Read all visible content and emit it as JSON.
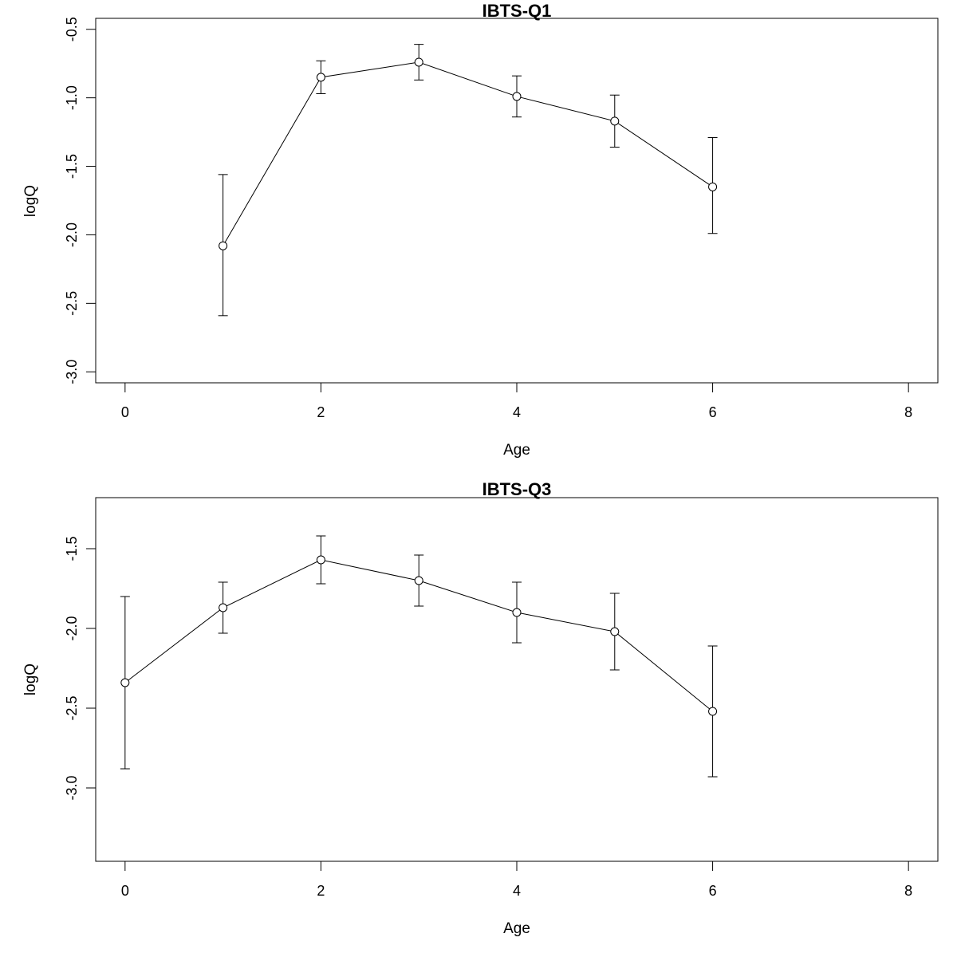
{
  "chart_data": [
    {
      "type": "line",
      "title": "IBTS-Q1",
      "xlabel": "Age",
      "ylabel": "logQ",
      "xlim": [
        -0.3,
        8.3
      ],
      "ylim": [
        -3.08,
        -0.42
      ],
      "xticks": [
        0,
        2,
        4,
        6,
        8
      ],
      "xtick_labels": [
        "0",
        "2",
        "4",
        "6",
        "8"
      ],
      "yticks": [
        -3.0,
        -2.5,
        -2.0,
        -1.5,
        -1.0,
        -0.5
      ],
      "ytick_labels": [
        "-3.0",
        "-2.5",
        "-2.0",
        "-1.5",
        "-1.0",
        "-0.5"
      ],
      "grid": false,
      "series": [
        {
          "x": [
            1,
            2,
            3,
            4,
            5,
            6
          ],
          "y": [
            -2.08,
            -0.85,
            -0.74,
            -0.99,
            -1.17,
            -1.65
          ],
          "lower": [
            -2.59,
            -0.97,
            -0.87,
            -1.14,
            -1.36,
            -1.99
          ],
          "upper": [
            -1.56,
            -0.73,
            -0.61,
            -0.84,
            -0.98,
            -1.29
          ]
        }
      ]
    },
    {
      "type": "line",
      "title": "IBTS-Q3",
      "xlabel": "Age",
      "ylabel": "logQ",
      "xlim": [
        -0.3,
        8.3
      ],
      "ylim": [
        -3.46,
        -1.18
      ],
      "xticks": [
        0,
        2,
        4,
        6,
        8
      ],
      "xtick_labels": [
        "0",
        "2",
        "4",
        "6",
        "8"
      ],
      "yticks": [
        -3.0,
        -2.5,
        -2.0,
        -1.5
      ],
      "ytick_labels": [
        "-3.0",
        "-2.5",
        "-2.0",
        "-1.5"
      ],
      "grid": false,
      "series": [
        {
          "x": [
            0,
            1,
            2,
            3,
            4,
            5,
            6
          ],
          "y": [
            -2.34,
            -1.87,
            -1.57,
            -1.7,
            -1.9,
            -2.02,
            -2.52
          ],
          "lower": [
            -2.88,
            -2.03,
            -1.72,
            -1.86,
            -2.09,
            -2.26,
            -2.93
          ],
          "upper": [
            -1.8,
            -1.71,
            -1.42,
            -1.54,
            -1.71,
            -1.78,
            -2.11
          ]
        }
      ]
    }
  ]
}
